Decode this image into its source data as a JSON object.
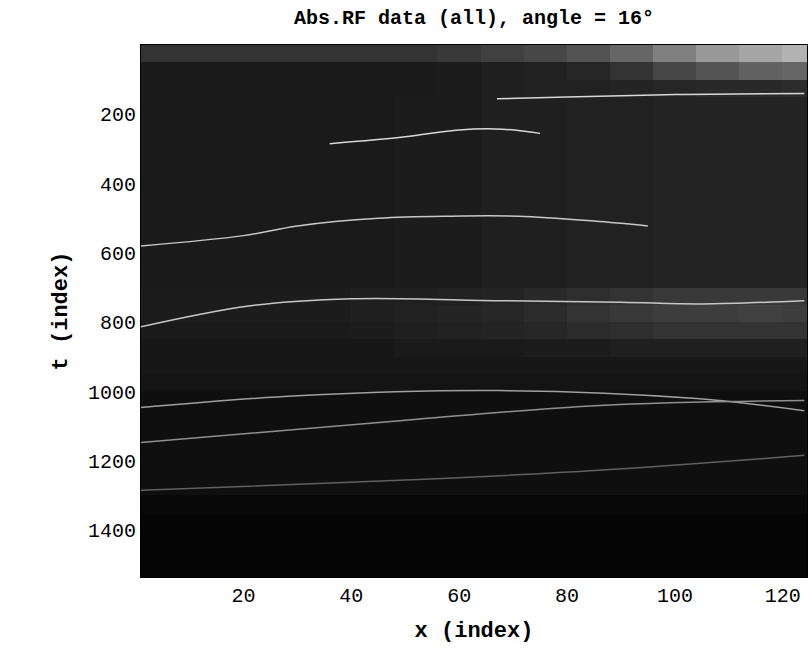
{
  "chart_data": {
    "type": "heatmap",
    "title": "Abs.RF data (all), angle = 16°",
    "x_label": "x (index)",
    "y_label": "t (index)",
    "xlim": [
      1,
      124.5
    ],
    "ylim": [
      1535,
      0
    ],
    "xticks": [
      20,
      40,
      60,
      80,
      100,
      120
    ],
    "yticks": [
      200,
      400,
      600,
      800,
      1000,
      1200,
      1400
    ],
    "grid": false,
    "zlim": [
      0,
      1
    ],
    "x": [
      4,
      12,
      20,
      28,
      36,
      44,
      52,
      60,
      68,
      76,
      84,
      92,
      100,
      108,
      116,
      124
    ],
    "y": [
      25,
      75,
      125,
      175,
      225,
      275,
      325,
      375,
      425,
      475,
      525,
      575,
      625,
      675,
      725,
      775,
      825,
      875,
      925,
      975,
      1025,
      1075,
      1125,
      1175,
      1225,
      1275,
      1325,
      1375,
      1425,
      1475,
      1525
    ],
    "z": [
      [
        0.2,
        0.2,
        0.2,
        0.2,
        0.2,
        0.2,
        0.2,
        0.22,
        0.25,
        0.28,
        0.32,
        0.4,
        0.5,
        0.6,
        0.65,
        0.7
      ],
      [
        0.1,
        0.1,
        0.1,
        0.1,
        0.1,
        0.1,
        0.1,
        0.11,
        0.12,
        0.13,
        0.15,
        0.2,
        0.28,
        0.33,
        0.38,
        0.4
      ],
      [
        0.1,
        0.1,
        0.1,
        0.1,
        0.1,
        0.1,
        0.1,
        0.11,
        0.12,
        0.13,
        0.13,
        0.14,
        0.15,
        0.16,
        0.16,
        0.17
      ],
      [
        0.1,
        0.1,
        0.1,
        0.1,
        0.1,
        0.1,
        0.11,
        0.11,
        0.12,
        0.12,
        0.13,
        0.13,
        0.14,
        0.14,
        0.14,
        0.14
      ],
      [
        0.1,
        0.1,
        0.1,
        0.1,
        0.1,
        0.1,
        0.11,
        0.11,
        0.12,
        0.12,
        0.13,
        0.13,
        0.14,
        0.14,
        0.14,
        0.14
      ],
      [
        0.1,
        0.1,
        0.1,
        0.1,
        0.1,
        0.1,
        0.11,
        0.11,
        0.12,
        0.12,
        0.13,
        0.13,
        0.14,
        0.14,
        0.14,
        0.14
      ],
      [
        0.1,
        0.1,
        0.1,
        0.1,
        0.1,
        0.1,
        0.11,
        0.11,
        0.12,
        0.12,
        0.13,
        0.13,
        0.14,
        0.14,
        0.14,
        0.14
      ],
      [
        0.1,
        0.1,
        0.1,
        0.1,
        0.1,
        0.1,
        0.11,
        0.11,
        0.12,
        0.12,
        0.13,
        0.13,
        0.14,
        0.14,
        0.14,
        0.14
      ],
      [
        0.1,
        0.1,
        0.1,
        0.1,
        0.1,
        0.1,
        0.11,
        0.11,
        0.12,
        0.12,
        0.13,
        0.13,
        0.14,
        0.14,
        0.14,
        0.14
      ],
      [
        0.1,
        0.1,
        0.1,
        0.1,
        0.1,
        0.1,
        0.11,
        0.11,
        0.12,
        0.12,
        0.13,
        0.13,
        0.14,
        0.14,
        0.14,
        0.14
      ],
      [
        0.1,
        0.1,
        0.1,
        0.1,
        0.1,
        0.1,
        0.11,
        0.11,
        0.12,
        0.12,
        0.13,
        0.13,
        0.14,
        0.14,
        0.14,
        0.14
      ],
      [
        0.1,
        0.1,
        0.1,
        0.1,
        0.1,
        0.1,
        0.11,
        0.11,
        0.12,
        0.12,
        0.13,
        0.13,
        0.14,
        0.14,
        0.14,
        0.14
      ],
      [
        0.1,
        0.1,
        0.1,
        0.1,
        0.1,
        0.1,
        0.11,
        0.11,
        0.12,
        0.12,
        0.13,
        0.13,
        0.14,
        0.14,
        0.14,
        0.14
      ],
      [
        0.1,
        0.1,
        0.1,
        0.1,
        0.1,
        0.1,
        0.11,
        0.11,
        0.12,
        0.12,
        0.13,
        0.13,
        0.14,
        0.14,
        0.14,
        0.14
      ],
      [
        0.11,
        0.11,
        0.11,
        0.11,
        0.11,
        0.12,
        0.12,
        0.13,
        0.14,
        0.16,
        0.18,
        0.2,
        0.22,
        0.22,
        0.22,
        0.22
      ],
      [
        0.11,
        0.11,
        0.11,
        0.11,
        0.11,
        0.12,
        0.13,
        0.14,
        0.15,
        0.17,
        0.2,
        0.22,
        0.24,
        0.24,
        0.25,
        0.24
      ],
      [
        0.1,
        0.1,
        0.1,
        0.1,
        0.1,
        0.11,
        0.12,
        0.13,
        0.14,
        0.15,
        0.17,
        0.18,
        0.2,
        0.2,
        0.2,
        0.2
      ],
      [
        0.09,
        0.09,
        0.09,
        0.09,
        0.09,
        0.09,
        0.1,
        0.1,
        0.1,
        0.11,
        0.11,
        0.12,
        0.12,
        0.12,
        0.12,
        0.12
      ],
      [
        0.09,
        0.09,
        0.09,
        0.09,
        0.09,
        0.09,
        0.09,
        0.09,
        0.09,
        0.09,
        0.09,
        0.09,
        0.09,
        0.09,
        0.09,
        0.09
      ],
      [
        0.08,
        0.08,
        0.08,
        0.08,
        0.08,
        0.08,
        0.08,
        0.08,
        0.08,
        0.08,
        0.08,
        0.08,
        0.08,
        0.08,
        0.08,
        0.08
      ],
      [
        0.06,
        0.06,
        0.06,
        0.06,
        0.06,
        0.06,
        0.06,
        0.06,
        0.06,
        0.06,
        0.06,
        0.06,
        0.06,
        0.06,
        0.06,
        0.06
      ],
      [
        0.06,
        0.06,
        0.06,
        0.06,
        0.06,
        0.06,
        0.06,
        0.06,
        0.06,
        0.06,
        0.06,
        0.06,
        0.06,
        0.06,
        0.06,
        0.06
      ],
      [
        0.06,
        0.06,
        0.06,
        0.06,
        0.06,
        0.06,
        0.06,
        0.06,
        0.06,
        0.06,
        0.06,
        0.06,
        0.06,
        0.06,
        0.06,
        0.06
      ],
      [
        0.06,
        0.06,
        0.06,
        0.06,
        0.06,
        0.06,
        0.06,
        0.06,
        0.06,
        0.06,
        0.06,
        0.06,
        0.06,
        0.06,
        0.06,
        0.06
      ],
      [
        0.06,
        0.06,
        0.06,
        0.06,
        0.06,
        0.06,
        0.06,
        0.06,
        0.06,
        0.06,
        0.06,
        0.06,
        0.06,
        0.06,
        0.06,
        0.06
      ],
      [
        0.06,
        0.06,
        0.06,
        0.06,
        0.06,
        0.06,
        0.06,
        0.06,
        0.06,
        0.06,
        0.06,
        0.06,
        0.06,
        0.06,
        0.06,
        0.06
      ],
      [
        0.03,
        0.03,
        0.03,
        0.03,
        0.03,
        0.03,
        0.03,
        0.03,
        0.03,
        0.03,
        0.03,
        0.03,
        0.03,
        0.03,
        0.03,
        0.03
      ],
      [
        0.02,
        0.02,
        0.02,
        0.02,
        0.02,
        0.02,
        0.02,
        0.02,
        0.02,
        0.02,
        0.02,
        0.02,
        0.02,
        0.02,
        0.02,
        0.02
      ],
      [
        0.02,
        0.02,
        0.02,
        0.02,
        0.02,
        0.02,
        0.02,
        0.02,
        0.02,
        0.02,
        0.02,
        0.02,
        0.02,
        0.02,
        0.02,
        0.02
      ],
      [
        0.02,
        0.02,
        0.02,
        0.02,
        0.02,
        0.02,
        0.02,
        0.02,
        0.02,
        0.02,
        0.02,
        0.02,
        0.02,
        0.02,
        0.02,
        0.02
      ],
      [
        0.02,
        0.02,
        0.02,
        0.02,
        0.02,
        0.02,
        0.02,
        0.02,
        0.02,
        0.02,
        0.02,
        0.02,
        0.02,
        0.02,
        0.02,
        0.02
      ]
    ],
    "series": [
      {
        "type": "line",
        "color": "#d8d8d8",
        "x": [
          67,
          80,
          100,
          124
        ],
        "values": [
          155,
          150,
          143,
          140
        ]
      },
      {
        "type": "line",
        "color": "#d8d8d8",
        "x": [
          36,
          50,
          60,
          68,
          75
        ],
        "values": [
          285,
          265,
          245,
          243,
          255
        ]
      },
      {
        "type": "line",
        "color": "#c8c8c8",
        "x": [
          1,
          20,
          30,
          45,
          58,
          71,
          85,
          95
        ],
        "values": [
          580,
          550,
          522,
          500,
          494,
          494,
          508,
          522
        ]
      },
      {
        "type": "line",
        "color": "#c8c8c8",
        "x": [
          1,
          21,
          40,
          68,
          90,
          105,
          124
        ],
        "values": [
          813,
          753,
          732,
          738,
          742,
          747,
          738
        ]
      },
      {
        "type": "line",
        "color": "#a0a0a0",
        "x": [
          1,
          30,
          67,
          104,
          124
        ],
        "values": [
          1046,
          1012,
          997,
          1020,
          1055
        ]
      },
      {
        "type": "line",
        "color": "#909090",
        "x": [
          1,
          49,
          86,
          124
        ],
        "values": [
          1147,
          1084,
          1040,
          1026
        ]
      },
      {
        "type": "line",
        "color": "#606060",
        "x": [
          1,
          49,
          86,
          124
        ],
        "values": [
          1285,
          1256,
          1227,
          1184
        ]
      }
    ]
  }
}
